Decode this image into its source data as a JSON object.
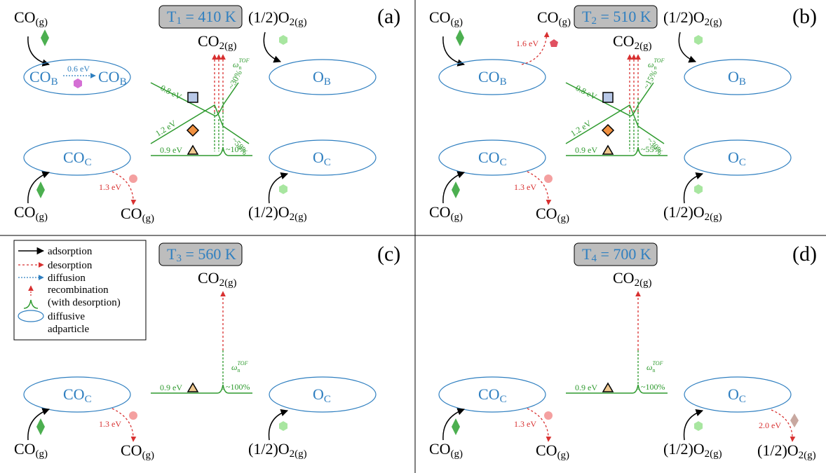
{
  "panels": [
    {
      "letter": "(a)",
      "temp_symbol": "T",
      "temp_sub": "1",
      "temp_value": "= 410 K",
      "co_g": "CO",
      "g_sub": "(g)",
      "o2_prefix": "(1/2)O",
      "o2_sub": "2(g)",
      "co2": "CO",
      "co2_sub": "2(g)",
      "co_b": "CO",
      "b_sub": "B",
      "co_c": "CO",
      "c_sub": "C",
      "o_b": "O",
      "o_c": "O",
      "omega": "ω",
      "omega_sub": "n",
      "omega_sup": "TOF",
      "diffusion_ev": "0.6 eV",
      "desorb_c_ev": "1.3 eV",
      "path_08_ev": "0.8 eV",
      "path_12_ev": "1.2 eV",
      "path_09_ev": "0.9 eV",
      "pct_top": "~30%",
      "pct_mid": "~58%",
      "pct_low": "~10%"
    },
    {
      "letter": "(b)",
      "temp_symbol": "T",
      "temp_sub": "2",
      "temp_value": "= 510 K",
      "co_g": "CO",
      "g_sub": "(g)",
      "o2_prefix": "(1/2)O",
      "o2_sub": "2(g)",
      "co2": "CO",
      "co2_sub": "2(g)",
      "co_b": "CO",
      "b_sub": "B",
      "co_c": "CO",
      "c_sub": "C",
      "o_b": "O",
      "o_c": "O",
      "omega": "ω",
      "omega_sub": "n",
      "omega_sup": "TOF",
      "desorb_b_ev": "1.6 eV",
      "desorb_c_ev": "1.3 eV",
      "path_08_ev": "0.8 eV",
      "path_12_ev": "1.2 eV",
      "path_09_ev": "0.9 eV",
      "pct_top": "~15%",
      "pct_mid": "~30%",
      "pct_low": "~55%"
    },
    {
      "letter": "(c)",
      "temp_symbol": "T",
      "temp_sub": "3",
      "temp_value": "= 560 K",
      "co_g": "CO",
      "g_sub": "(g)",
      "o2_prefix": "(1/2)O",
      "o2_sub": "2(g)",
      "co2": "CO",
      "co2_sub": "2(g)",
      "co_c": "CO",
      "c_sub": "C",
      "o_c": "O",
      "omega": "ω",
      "omega_sub": "n",
      "omega_sup": "TOF",
      "desorb_c_ev": "1.3 eV",
      "path_09_ev": "0.9 eV",
      "pct_low": "~100%"
    },
    {
      "letter": "(d)",
      "temp_symbol": "T",
      "temp_sub": "4",
      "temp_value": "= 700 K",
      "co_g": "CO",
      "g_sub": "(g)",
      "o2_prefix": "(1/2)O",
      "o2_sub": "2(g)",
      "co2": "CO",
      "co2_sub": "2(g)",
      "co_c": "CO",
      "c_sub": "C",
      "o_c": "O",
      "omega": "ω",
      "omega_sub": "n",
      "omega_sup": "TOF",
      "desorb_c_ev": "1.3 eV",
      "desorb_o_ev": "2.0 eV",
      "path_09_ev": "0.9 eV",
      "pct_low": "~100%"
    }
  ],
  "legend": {
    "adsorption": "adsorption",
    "desorption": "desorption",
    "diffusion": "diffusion",
    "recombination": "recombination",
    "recombination_note": "(with desorption)",
    "diffusive": "diffusive",
    "adparticle": "adparticle"
  },
  "colors": {
    "species_blue": "#2f7fc0",
    "path_green": "#2e9a2e",
    "desorption_red": "#d83030",
    "temp_box_fill": "#bdbdbd",
    "diamond_green": "#4caf50",
    "hexagon_pink": "#d46fd4",
    "circle_pink": "#f4a0a0",
    "hexagon_light_green": "#a8e6a0",
    "square_blue": "#b8c8e8",
    "diamond_orange": "#f09040",
    "triangle_tan": "#f0c890",
    "pentagon_red": "#e05060",
    "diamond_brown": "#c8a8a0"
  },
  "icons": [
    "adsorption-arrow",
    "desorption-arrow",
    "diffusion-arrow",
    "recombination-arrow",
    "diffusive-ellipse",
    "green-diamond",
    "pink-hexagon",
    "pink-circle",
    "green-hexagon",
    "blue-square",
    "orange-diamond",
    "tan-triangle",
    "red-pentagon",
    "brown-diamond"
  ]
}
